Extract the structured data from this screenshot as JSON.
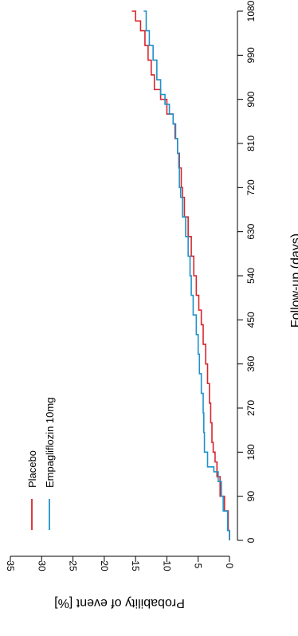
{
  "chart_data": {
    "type": "line",
    "orientation": "rotated-90-clockwise",
    "title": "",
    "xlabel": "Follow-up (days)",
    "ylabel": "Probability of event [%]",
    "xlim": [
      0,
      1080
    ],
    "ylim": [
      0,
      35
    ],
    "x_ticks": [
      0,
      90,
      180,
      270,
      360,
      450,
      540,
      630,
      720,
      810,
      900,
      990,
      1080
    ],
    "y_ticks": [
      0,
      5,
      10,
      15,
      20,
      25,
      30,
      35
    ],
    "grid": false,
    "legend_position": "top-left",
    "series": [
      {
        "name": "Placebo",
        "color": "#d7262d",
        "step": true,
        "x": [
          0,
          20,
          60,
          90,
          130,
          160,
          180,
          200,
          240,
          280,
          320,
          360,
          400,
          440,
          470,
          500,
          540,
          580,
          620,
          660,
          700,
          720,
          760,
          790,
          820,
          850,
          870,
          900,
          920,
          950,
          980,
          1010,
          1040,
          1060,
          1080
        ],
        "y": [
          0,
          0.2,
          0.8,
          1.5,
          2.0,
          2.3,
          2.6,
          2.8,
          3.0,
          3.2,
          3.5,
          3.8,
          4.2,
          4.5,
          4.9,
          5.3,
          5.7,
          6.1,
          6.6,
          7.2,
          7.5,
          7.7,
          8.0,
          8.3,
          8.7,
          9.0,
          10.0,
          11.0,
          12.0,
          12.5,
          13.0,
          13.5,
          14.2,
          15.0,
          15.6
        ]
      },
      {
        "name": "Empagliflozin 10mg",
        "color": "#1f91c9",
        "step": true,
        "x": [
          0,
          20,
          60,
          90,
          120,
          140,
          150,
          180,
          220,
          260,
          300,
          340,
          380,
          420,
          460,
          500,
          540,
          580,
          620,
          660,
          700,
          720,
          760,
          790,
          820,
          850,
          870,
          890,
          910,
          940,
          980,
          1010,
          1040,
          1080
        ],
        "y": [
          0,
          0.3,
          1.0,
          1.3,
          1.8,
          2.5,
          3.5,
          4.0,
          4.1,
          4.2,
          4.5,
          4.8,
          5.0,
          5.3,
          5.8,
          6.1,
          6.3,
          6.6,
          7.0,
          7.5,
          7.8,
          8.0,
          8.1,
          8.3,
          8.6,
          9.0,
          9.6,
          10.3,
          11.0,
          11.6,
          12.2,
          12.8,
          13.3,
          13.7
        ]
      }
    ]
  }
}
